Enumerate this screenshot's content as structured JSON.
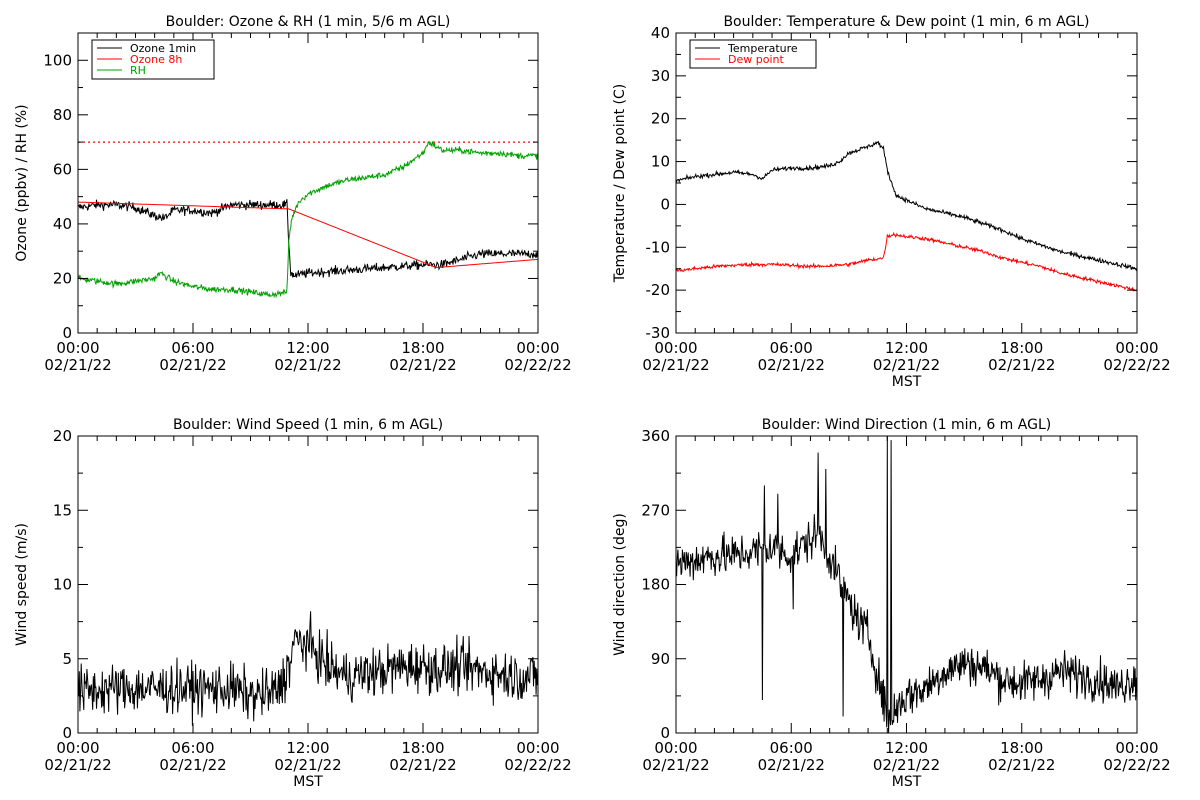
{
  "chart_data": [
    {
      "id": "ozone-rh",
      "type": "line",
      "title": "Boulder: Ozone & RH (1 min, 5/6 m AGL)",
      "xlabel": "",
      "ylabel": "Ozone (ppbv) / RH (%)",
      "ylim": [
        0,
        110
      ],
      "yticks": [
        0,
        20,
        40,
        60,
        80,
        100
      ],
      "xlim": [
        0,
        24
      ],
      "xtick_hours": [
        0,
        6,
        12,
        18,
        24
      ],
      "xtick_times": [
        "00:00",
        "06:00",
        "12:00",
        "18:00",
        "00:00"
      ],
      "xtick_dates": [
        "02/21/22",
        "02/21/22",
        "02/21/22",
        "02/21/22",
        "02/22/22"
      ],
      "legend_position": "top-left",
      "hlines": [
        {
          "y": 70,
          "color": "#ff0000",
          "style": "dotted"
        }
      ],
      "series": [
        {
          "name": "Ozone 1min",
          "color": "#000000",
          "noise": 1.2,
          "x": [
            0,
            1,
            2,
            3,
            4,
            4.5,
            5,
            6,
            7,
            8,
            9,
            10,
            10.9,
            11,
            11.1,
            11.3,
            12,
            14,
            16,
            18,
            19,
            20,
            21,
            22,
            23,
            24
          ],
          "y": [
            46,
            47,
            47,
            46,
            43,
            42,
            45,
            45,
            44,
            47,
            47,
            47,
            47,
            33,
            22,
            21,
            22,
            23,
            24,
            25,
            25,
            27,
            29,
            29,
            29,
            29
          ]
        },
        {
          "name": "Ozone 8h",
          "color": "#ff0000",
          "noise": 0,
          "x": [
            0,
            11,
            18.7,
            24
          ],
          "y": [
            48,
            45.5,
            24,
            27
          ]
        },
        {
          "name": "RH",
          "color": "#00a000",
          "noise": 0.8,
          "x": [
            0,
            1,
            2,
            3,
            4,
            4.3,
            5,
            6,
            7,
            8,
            9,
            10,
            10.9,
            11,
            11.15,
            11.5,
            12,
            13,
            14,
            15,
            16,
            17,
            18,
            18.3,
            19,
            20,
            21,
            22,
            23,
            24
          ],
          "y": [
            20,
            19,
            18,
            19,
            20,
            22,
            19,
            17,
            16,
            16,
            15,
            14,
            15,
            34,
            42,
            48,
            51,
            54,
            56,
            57,
            58,
            61,
            66,
            70,
            67,
            67,
            66,
            66,
            65,
            65
          ]
        }
      ]
    },
    {
      "id": "temp-dew",
      "type": "line",
      "title": "Boulder: Temperature & Dew point (1 min, 6 m AGL)",
      "xlabel": "MST",
      "ylabel": "Temperature / Dew point (C)",
      "ylim": [
        -30,
        40
      ],
      "yticks": [
        -30,
        -20,
        -10,
        0,
        10,
        20,
        30,
        40
      ],
      "xlim": [
        0,
        24
      ],
      "xtick_hours": [
        0,
        6,
        12,
        18,
        24
      ],
      "xtick_times": [
        "00:00",
        "06:00",
        "12:00",
        "18:00",
        "00:00"
      ],
      "xtick_dates": [
        "02/21/22",
        "02/21/22",
        "02/21/22",
        "02/21/22",
        "02/22/22"
      ],
      "legend_position": "top-left",
      "hlines": [],
      "series": [
        {
          "name": "Temperature",
          "color": "#000000",
          "noise": 0.35,
          "x": [
            0,
            1,
            2,
            3,
            4,
            4.5,
            5,
            6,
            7,
            8,
            8.5,
            9,
            10,
            10.5,
            10.8,
            11,
            11.3,
            11.5,
            12,
            13,
            14,
            15,
            16,
            17,
            18,
            19,
            20,
            21,
            22,
            23,
            24
          ],
          "y": [
            5.5,
            6.5,
            7,
            7.5,
            7,
            6,
            8,
            8.5,
            8.5,
            9,
            10,
            12,
            13.5,
            14.5,
            13,
            8,
            4,
            2,
            1,
            -1,
            -2,
            -3,
            -4.5,
            -6,
            -8,
            -9.5,
            -11,
            -12,
            -13,
            -14,
            -15
          ]
        },
        {
          "name": "Dew point",
          "color": "#ff0000",
          "noise": 0.3,
          "x": [
            0,
            1,
            2,
            3,
            4,
            5,
            6,
            7,
            8,
            9,
            10,
            10.8,
            11,
            11.3,
            12,
            13,
            14,
            15,
            16,
            17,
            18,
            19,
            20,
            21,
            22,
            23,
            24
          ],
          "y": [
            -15.5,
            -15,
            -14.5,
            -14.2,
            -14,
            -14,
            -14.2,
            -14.5,
            -14.3,
            -14,
            -13,
            -12.5,
            -7.5,
            -7,
            -7.5,
            -8,
            -9,
            -10,
            -11,
            -12.5,
            -13.5,
            -14.5,
            -16,
            -17,
            -18,
            -19,
            -20
          ]
        }
      ]
    },
    {
      "id": "wind-speed",
      "type": "line",
      "title": "Boulder: Wind Speed (1 min, 6 m AGL)",
      "xlabel": "MST",
      "ylabel": "Wind speed (m/s)",
      "ylim": [
        0,
        20
      ],
      "yticks": [
        0,
        5,
        10,
        15,
        20
      ],
      "xlim": [
        0,
        24
      ],
      "xtick_hours": [
        0,
        6,
        12,
        18,
        24
      ],
      "xtick_times": [
        "00:00",
        "06:00",
        "12:00",
        "18:00",
        "00:00"
      ],
      "xtick_dates": [
        "02/21/22",
        "02/21/22",
        "02/21/22",
        "02/21/22",
        "02/22/22"
      ],
      "legend_position": "none",
      "hlines": [],
      "series": [
        {
          "name": "",
          "color": "#000000",
          "noise": 1.2,
          "x": [
            0,
            2,
            4,
            6,
            8,
            9,
            10,
            10.5,
            11,
            11.3,
            12,
            13,
            14,
            15,
            16,
            17,
            18,
            19,
            20,
            21,
            22,
            23,
            24
          ],
          "y": [
            2.8,
            3,
            3,
            3,
            3,
            2.5,
            2.6,
            3,
            4.5,
            6.2,
            6,
            4.5,
            3.8,
            4,
            4.2,
            4.5,
            4.5,
            4.3,
            4.4,
            4.2,
            4,
            3.8,
            3.8
          ]
        }
      ]
    },
    {
      "id": "wind-dir",
      "type": "line",
      "title": "Boulder: Wind Direction (1 min, 6 m AGL)",
      "xlabel": "MST",
      "ylabel": "Wind direction (deg)",
      "ylim": [
        0,
        360
      ],
      "yticks": [
        0,
        90,
        180,
        270,
        360
      ],
      "xlim": [
        0,
        24
      ],
      "xtick_hours": [
        0,
        6,
        12,
        18,
        24
      ],
      "xtick_times": [
        "00:00",
        "06:00",
        "12:00",
        "18:00",
        "00:00"
      ],
      "xtick_dates": [
        "02/21/22",
        "02/21/22",
        "02/21/22",
        "02/21/22",
        "02/22/22"
      ],
      "legend_position": "none",
      "hlines": [],
      "series": [
        {
          "name": "",
          "color": "#000000",
          "noise": 18,
          "spikes": [
            [
              4.5,
              40
            ],
            [
              4.6,
              300
            ],
            [
              5.3,
              290
            ],
            [
              6.1,
              150
            ],
            [
              7.4,
              340
            ],
            [
              7.8,
              320
            ],
            [
              8.7,
              20
            ],
            [
              11.0,
              360
            ],
            [
              11.05,
              0
            ],
            [
              11.2,
              355
            ],
            [
              11.25,
              10
            ]
          ],
          "x": [
            0,
            1,
            2,
            3,
            4,
            5,
            6,
            7,
            7.5,
            8,
            8.5,
            9,
            9.5,
            10,
            10.5,
            11,
            11.3,
            11.6,
            12,
            13,
            14,
            15,
            16,
            17,
            18,
            19,
            20,
            21,
            22,
            23,
            24
          ],
          "y": [
            205,
            210,
            215,
            215,
            220,
            225,
            215,
            235,
            240,
            215,
            185,
            160,
            135,
            120,
            70,
            20,
            25,
            35,
            45,
            55,
            75,
            85,
            80,
            65,
            60,
            65,
            75,
            70,
            65,
            55,
            70
          ]
        }
      ]
    }
  ]
}
